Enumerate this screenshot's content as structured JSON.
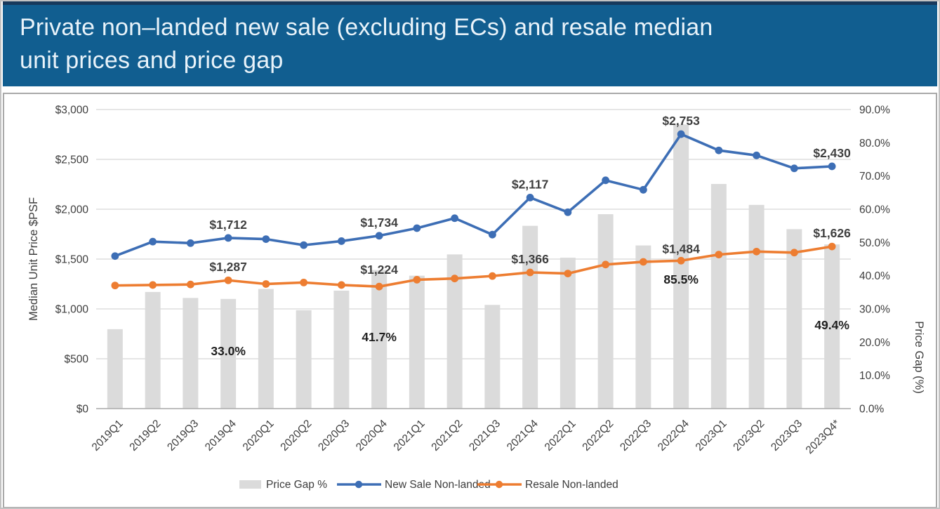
{
  "header": {
    "title": "Private non–landed new sale (excluding ECs) and resale median unit prices and price gap",
    "title_lines": [
      "Private non–landed new sale (excluding ECs) and resale median",
      "unit prices and price gap"
    ]
  },
  "chart_data": {
    "type": "combo",
    "categories": [
      "2019Q1",
      "2019Q2",
      "2019Q3",
      "2019Q4",
      "2020Q1",
      "2020Q2",
      "2020Q3",
      "2020Q4",
      "2021Q1",
      "2021Q2",
      "2021Q3",
      "2021Q4",
      "2022Q1",
      "2022Q2",
      "2022Q3",
      "2022Q4",
      "2023Q1",
      "2023Q2",
      "2023Q3",
      "2023Q4*"
    ],
    "series": [
      {
        "name": "Price Gap %",
        "type": "bar",
        "axis": "right",
        "color": "#dbdbdb",
        "values": [
          23.9,
          35.1,
          33.3,
          33.0,
          36.0,
          29.6,
          35.5,
          41.7,
          40.0,
          46.4,
          31.2,
          55.0,
          45.4,
          58.5,
          49.1,
          85.5,
          67.6,
          61.3,
          54.0,
          49.4
        ]
      },
      {
        "name": "New Sale Non-landed",
        "type": "line",
        "axis": "left",
        "color": "#3d6eb5",
        "values": [
          1530,
          1675,
          1660,
          1712,
          1700,
          1640,
          1680,
          1734,
          1810,
          1910,
          1745,
          2117,
          1970,
          2290,
          2195,
          2753,
          2590,
          2540,
          2410,
          2430
        ]
      },
      {
        "name": "Resale Non-landed",
        "type": "line",
        "axis": "left",
        "color": "#ed7d31",
        "values": [
          1235,
          1240,
          1245,
          1287,
          1250,
          1265,
          1240,
          1224,
          1293,
          1305,
          1330,
          1366,
          1355,
          1445,
          1472,
          1484,
          1545,
          1575,
          1565,
          1626
        ]
      }
    ],
    "point_labels": [
      {
        "series": 1,
        "category": "2019Q4",
        "text": "$1,712",
        "dy": -13
      },
      {
        "series": 1,
        "category": "2020Q4",
        "text": "$1,734",
        "dy": -13
      },
      {
        "series": 1,
        "category": "2021Q4",
        "text": "$2,117",
        "dy": -13
      },
      {
        "series": 1,
        "category": "2022Q4",
        "text": "$2,753",
        "dy": -13
      },
      {
        "series": 1,
        "category": "2023Q4*",
        "text": "$2,430",
        "dy": -13
      },
      {
        "series": 2,
        "category": "2019Q4",
        "text": "$1,287",
        "dy": -13
      },
      {
        "series": 2,
        "category": "2020Q4",
        "text": "$1,224",
        "dy": -18
      },
      {
        "series": 2,
        "category": "2021Q4",
        "text": "$1,366",
        "dy": -13
      },
      {
        "series": 2,
        "category": "2022Q4",
        "text": "$1,484",
        "dy": -11
      },
      {
        "series": 2,
        "category": "2023Q4*",
        "text": "$1,626",
        "dy": -13
      }
    ],
    "gap_labels": [
      {
        "category": "2019Q4",
        "text": "33.0%",
        "y": 372
      },
      {
        "category": "2020Q4",
        "text": "41.7%",
        "y": 352
      },
      {
        "category": "2022Q4",
        "text": "85.5%",
        "y": 270
      },
      {
        "category": "2023Q4*",
        "text": "49.4%",
        "y": 335
      }
    ],
    "left_axis": {
      "title": "Median Unit Price $PSF",
      "min": 0,
      "max": 3000,
      "step": 500,
      "tick_labels": [
        "$0",
        "$500",
        "$1,000",
        "$1,500",
        "$2,000",
        "$2,500",
        "$3,000"
      ]
    },
    "right_axis": {
      "title": "Price Gap (%)",
      "min": 0,
      "max": 90,
      "step": 10,
      "tick_labels": [
        "0.0%",
        "10.0%",
        "20.0%",
        "30.0%",
        "40.0%",
        "50.0%",
        "60.0%",
        "70.0%",
        "80.0%",
        "90.0%"
      ]
    },
    "legend": [
      {
        "label": "Price Gap %",
        "swatch": "bar",
        "color": "#dbdbdb"
      },
      {
        "label": "New Sale Non-landed",
        "swatch": "line-dot",
        "color": "#3d6eb5"
      },
      {
        "label": "Resale Non-landed",
        "swatch": "line-dot",
        "color": "#ed7d31"
      }
    ],
    "grid": true,
    "legend_position": "bottom"
  },
  "colors": {
    "banner_bg": "#115e90",
    "banner_top_border": "#17395c",
    "banner_text": "#e9f3fa",
    "gridline": "#d6d6d6",
    "axis_line": "#ababab",
    "tick_text": "#3d3d3d",
    "data_label_text": "#3f3f3f",
    "gap_label_text": "#1f1f1f"
  }
}
